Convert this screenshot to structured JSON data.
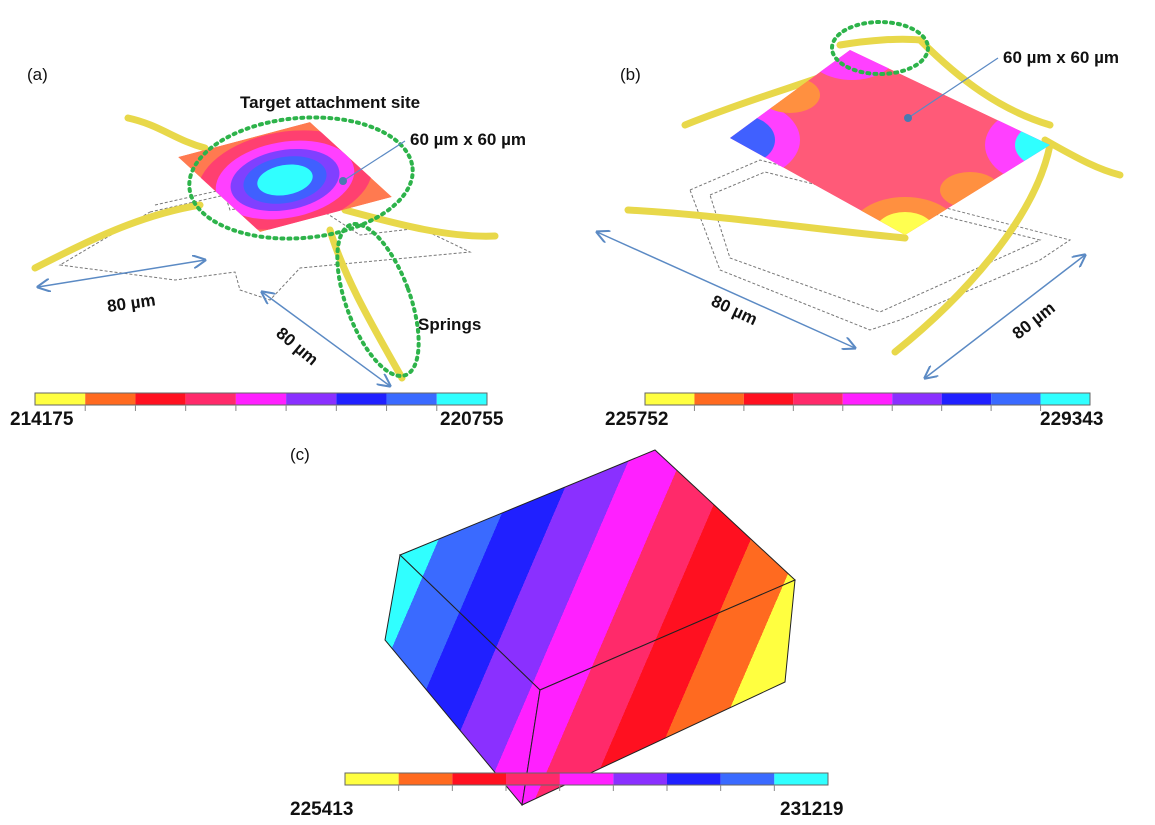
{
  "panels": [
    {
      "label": "(a)",
      "target_label": "Target attachment site",
      "size_label": "60 µm x 60 µm",
      "length_labels": [
        "80 µm",
        "80 µm"
      ],
      "springs_label": "Springs",
      "colorbar": {
        "min": 214175,
        "max": 220755
      }
    },
    {
      "label": "(b)",
      "size_label": "60 µm x 60 µm",
      "length_labels": [
        "80 µm",
        "80 µm"
      ],
      "colorbar": {
        "min": 225752,
        "max": 229343
      }
    },
    {
      "label": "(c)",
      "colorbar": {
        "min": 225413,
        "max": 231219
      }
    }
  ]
}
